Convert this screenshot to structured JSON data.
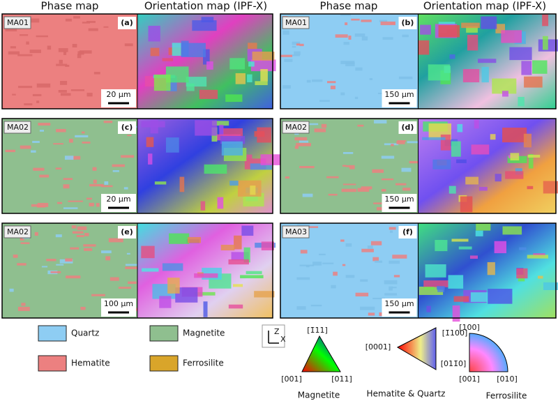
{
  "headers": [
    "Phase map",
    "Orientation map (IPF-X)",
    "Phase map",
    "Orientation map (IPF-X)"
  ],
  "panels": [
    {
      "sample": "MA01",
      "letter": "(a)",
      "scale": "20 µm"
    },
    {
      "sample": "MA01",
      "letter": "(b)",
      "scale": "150 µm"
    },
    {
      "sample": "MA02",
      "letter": "(c)",
      "scale": "20 µm"
    },
    {
      "sample": "MA02",
      "letter": "(d)",
      "scale": "150 µm"
    },
    {
      "sample": "MA02",
      "letter": "(e)",
      "scale": "100 µm"
    },
    {
      "sample": "MA03",
      "letter": "(f)",
      "scale": "150 µm"
    }
  ],
  "legend": [
    "Quartz",
    "Magnetite",
    "Hematite",
    "Ferrosilite"
  ],
  "axes": [
    "Z",
    "X"
  ],
  "ipf_keys": [
    {
      "title": "Magnetite",
      "poles": [
        "[1̄11]",
        "[001]",
        "[011]"
      ]
    },
    {
      "title": "Hematite & Quartz",
      "poles": [
        "[0001]",
        "[1̄100]",
        "[011̄0]"
      ]
    },
    {
      "title": "Ferrosilite",
      "poles": [
        "[100]",
        "[001]",
        "[010]"
      ]
    }
  ]
}
